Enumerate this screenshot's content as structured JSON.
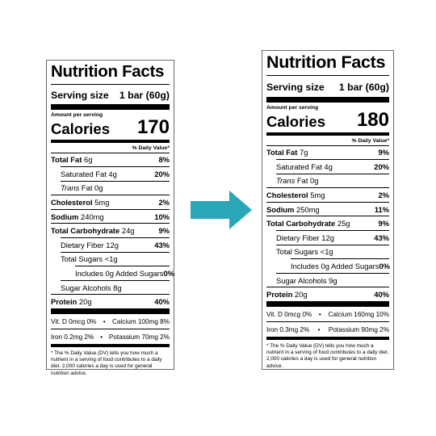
{
  "arrow_color": "#2aa6b8",
  "labels": [
    {
      "title": "Nutrition Facts",
      "serving_label": "Serving size",
      "serving_value": "1 bar (60g)",
      "amount_per_serving": "Amount per serving",
      "calories_label": "Calories",
      "calories_value": "170",
      "dv_header": "% Daily Value*",
      "total_fat": {
        "label": "Total Fat",
        "amount": "6g",
        "dv": "8%"
      },
      "saturated_fat": {
        "label": "Saturated Fat 4g",
        "dv": "20%"
      },
      "trans_fat": {
        "label": "Trans",
        "amount": " Fat 0g"
      },
      "cholesterol": {
        "label": "Cholesterol",
        "amount": "5mg",
        "dv": "2%"
      },
      "sodium": {
        "label": "Sodium",
        "amount": "240mg",
        "dv": "10%"
      },
      "total_carb": {
        "label": "Total Carbohydrate",
        "amount": "24g",
        "dv": "9%"
      },
      "fiber": {
        "label": "Dietary Fiber 12g",
        "dv": "43%"
      },
      "total_sugars": {
        "label": "Total Sugars <1g"
      },
      "added_sugars": {
        "label": "Includes 0g Added Sugars",
        "dv": "0%"
      },
      "sugar_alcohols": {
        "label": "Sugar Alcohols 8g"
      },
      "protein": {
        "label": "Protein",
        "amount": "20g",
        "dv": "40%"
      },
      "vit_row1_left": "Vit. D 0mcg 0%",
      "vit_row1_right": "Calcium 100mg 8%",
      "vit_row2_left": "Iron 0.2mg 2%",
      "vit_row2_right": "Potassium 70mg 2%",
      "footnote": "* The % Daily Value (DV) tells you how much a nutrient in a serving of food contributes to a daily diet. 2,000 calories a day is used for general nutrition advice."
    },
    {
      "title": "Nutrition Facts",
      "serving_label": "Serving size",
      "serving_value": "1 bar (60g)",
      "amount_per_serving": "Amount per serving",
      "calories_label": "Calories",
      "calories_value": "180",
      "dv_header": "% Daily Value*",
      "total_fat": {
        "label": "Total Fat",
        "amount": "7g",
        "dv": "9%"
      },
      "saturated_fat": {
        "label": "Saturated Fat 4g",
        "dv": "20%"
      },
      "trans_fat": {
        "label": "Trans",
        "amount": " Fat 0g"
      },
      "cholesterol": {
        "label": "Cholesterol",
        "amount": "5mg",
        "dv": "2%"
      },
      "sodium": {
        "label": "Sodium",
        "amount": "250mg",
        "dv": "11%"
      },
      "total_carb": {
        "label": "Total Carbohydrate",
        "amount": "25g",
        "dv": "9%"
      },
      "fiber": {
        "label": "Dietary Fiber 12g",
        "dv": "43%"
      },
      "total_sugars": {
        "label": "Total Sugars <1g"
      },
      "added_sugars": {
        "label": "Includes 0g Added Sugars",
        "dv": "0%"
      },
      "sugar_alcohols": {
        "label": "Sugar Alcohols 9g"
      },
      "protein": {
        "label": "Protein",
        "amount": "20g",
        "dv": "40%"
      },
      "vit_row1_left": "Vit. D 0mcg 0%",
      "vit_row1_right": "Calcium 160mg 10%",
      "vit_row2_left": "Iron 0.3mg 2%",
      "vit_row2_right": "Potassium 90mg 2%",
      "footnote": "* The % Daily Value (DV) tells you how much a nutrient in a serving of food contributes to a daily diet. 2,000 calories a day is used for general nutrition advice."
    }
  ]
}
